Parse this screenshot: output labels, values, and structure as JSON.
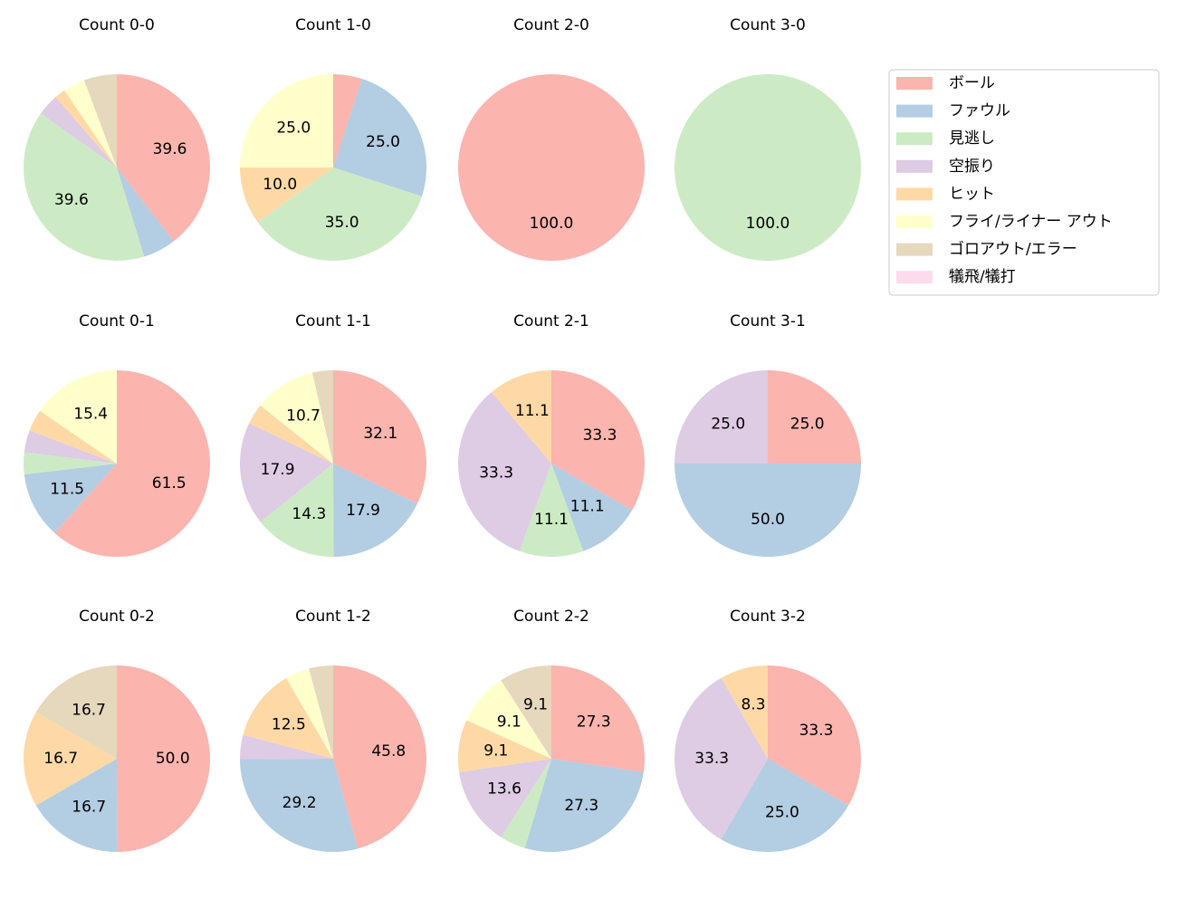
{
  "legend": {
    "labels": [
      "ボール",
      "ファウル",
      "見逃し",
      "空振り",
      "ヒット",
      "フライ/ライナー アウト",
      "ゴロアウト/エラー",
      "犠飛/犠打"
    ],
    "colors": [
      "#fbb4ae",
      "#b3cde3",
      "#ccebc5",
      "#decbe4",
      "#fed9a6",
      "#ffffcc",
      "#e5d8bd",
      "#fddaec"
    ]
  },
  "chart_data": [
    {
      "type": "pie",
      "title": "Count 0-0",
      "values": [
        39.6,
        5.7,
        39.6,
        3.8,
        1.9,
        3.8,
        5.7,
        0
      ],
      "value_labels": [
        "39.6",
        null,
        "39.6",
        null,
        null,
        null,
        null,
        null
      ]
    },
    {
      "type": "pie",
      "title": "Count 1-0",
      "values": [
        5.0,
        25.0,
        35.0,
        0,
        10.0,
        25.0,
        0,
        0
      ],
      "value_labels": [
        null,
        "25.0",
        "35.0",
        null,
        "10.0",
        "25.0",
        null,
        null
      ]
    },
    {
      "type": "pie",
      "title": "Count 2-0",
      "values": [
        100,
        0,
        0,
        0,
        0,
        0,
        0,
        0
      ],
      "value_labels": [
        "100.0",
        null,
        null,
        null,
        null,
        null,
        null,
        null
      ]
    },
    {
      "type": "pie",
      "title": "Count 3-0",
      "values": [
        0,
        0,
        100,
        0,
        0,
        0,
        0,
        0
      ],
      "value_labels": [
        null,
        null,
        "100.0",
        null,
        null,
        null,
        null,
        null
      ]
    },
    {
      "type": "pie",
      "title": "Count 0-1",
      "values": [
        61.5,
        11.5,
        3.8,
        3.8,
        3.8,
        15.4,
        0,
        0
      ],
      "value_labels": [
        "61.5",
        "11.5",
        null,
        null,
        null,
        "15.4",
        null,
        null
      ]
    },
    {
      "type": "pie",
      "title": "Count 1-1",
      "values": [
        32.1,
        17.9,
        14.3,
        17.9,
        3.6,
        10.7,
        3.6,
        0
      ],
      "value_labels": [
        "32.1",
        "17.9",
        "14.3",
        "17.9",
        null,
        "10.7",
        null,
        null
      ]
    },
    {
      "type": "pie",
      "title": "Count 2-1",
      "values": [
        33.3,
        11.1,
        11.1,
        33.3,
        11.1,
        0,
        0,
        0
      ],
      "value_labels": [
        "33.3",
        "11.1",
        "11.1",
        "33.3",
        "11.1",
        null,
        null,
        null
      ]
    },
    {
      "type": "pie",
      "title": "Count 3-1",
      "values": [
        25,
        50,
        0,
        25,
        0,
        0,
        0,
        0
      ],
      "value_labels": [
        "25.0",
        "50.0",
        null,
        "25.0",
        null,
        null,
        null,
        null
      ]
    },
    {
      "type": "pie",
      "title": "Count 0-2",
      "values": [
        50,
        16.7,
        0,
        0,
        16.7,
        0,
        16.7,
        0
      ],
      "value_labels": [
        "50.0",
        "16.7",
        null,
        null,
        "16.7",
        null,
        "16.7",
        null
      ]
    },
    {
      "type": "pie",
      "title": "Count 1-2",
      "values": [
        45.8,
        29.2,
        0,
        4.2,
        12.5,
        4.2,
        4.2,
        0
      ],
      "value_labels": [
        "45.8",
        "29.2",
        null,
        null,
        "12.5",
        null,
        null,
        null
      ]
    },
    {
      "type": "pie",
      "title": "Count 2-2",
      "values": [
        27.3,
        27.3,
        4.5,
        13.6,
        9.1,
        9.1,
        9.1,
        0
      ],
      "value_labels": [
        "27.3",
        "27.3",
        null,
        "13.6",
        "9.1",
        "9.1",
        "9.1",
        null
      ]
    },
    {
      "type": "pie",
      "title": "Count 3-2",
      "values": [
        33.3,
        25,
        0,
        33.3,
        8.3,
        0,
        0,
        0
      ],
      "value_labels": [
        "33.3",
        "25.0",
        null,
        "33.3",
        "8.3",
        null,
        null,
        null
      ]
    }
  ]
}
